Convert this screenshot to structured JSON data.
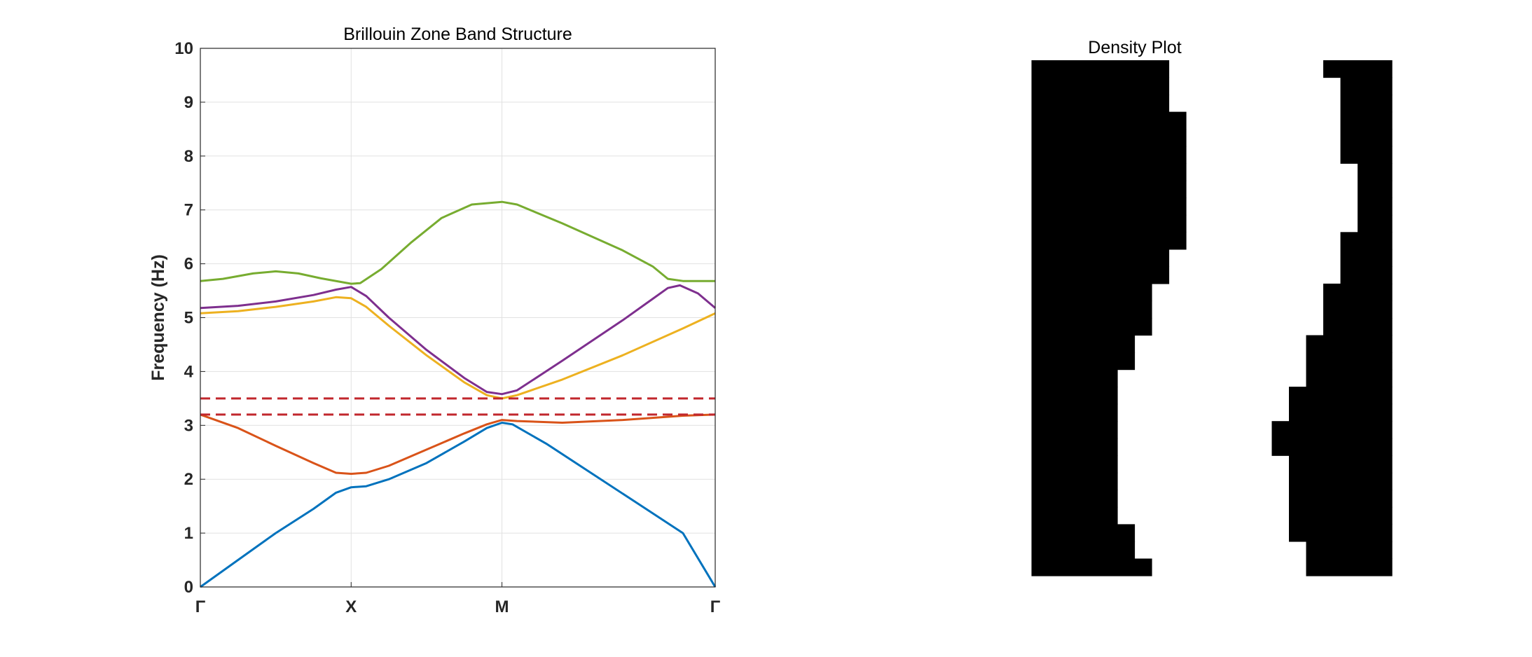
{
  "chart_data": [
    {
      "type": "line",
      "title": "Brillouin Zone Band Structure",
      "xlabel": "",
      "ylabel": "Frequency (Hz)",
      "ylim": [
        0,
        10
      ],
      "yticks": [
        0,
        1,
        2,
        3,
        4,
        5,
        6,
        7,
        8,
        9,
        10
      ],
      "xlim": [
        0,
        3.4142
      ],
      "xticks": [
        {
          "value": 0,
          "label": "Γ"
        },
        {
          "value": 1,
          "label": "X"
        },
        {
          "value": 2,
          "label": "M"
        },
        {
          "value": 3.4142,
          "label": "Γ"
        }
      ],
      "grid": true,
      "series": [
        {
          "color": "#0072BD",
          "points": [
            [
              0,
              0
            ],
            [
              0.25,
              0.5
            ],
            [
              0.5,
              1.0
            ],
            [
              0.75,
              1.45
            ],
            [
              0.9,
              1.75
            ],
            [
              1.0,
              1.85
            ],
            [
              1.1,
              1.87
            ],
            [
              1.25,
              2.0
            ],
            [
              1.5,
              2.3
            ],
            [
              1.75,
              2.7
            ],
            [
              1.9,
              2.95
            ],
            [
              2.0,
              3.05
            ],
            [
              2.07,
              3.02
            ],
            [
              2.3,
              2.65
            ],
            [
              2.6,
              2.1
            ],
            [
              2.9,
              1.55
            ],
            [
              3.2,
              1.0
            ],
            [
              3.4142,
              0
            ]
          ]
        },
        {
          "color": "#D95319",
          "points": [
            [
              0,
              3.2
            ],
            [
              0.25,
              2.95
            ],
            [
              0.5,
              2.62
            ],
            [
              0.75,
              2.3
            ],
            [
              0.9,
              2.12
            ],
            [
              1.0,
              2.1
            ],
            [
              1.1,
              2.12
            ],
            [
              1.25,
              2.25
            ],
            [
              1.5,
              2.55
            ],
            [
              1.75,
              2.85
            ],
            [
              1.9,
              3.02
            ],
            [
              2.0,
              3.1
            ],
            [
              2.1,
              3.08
            ],
            [
              2.4,
              3.05
            ],
            [
              2.8,
              3.1
            ],
            [
              3.2,
              3.18
            ],
            [
              3.4142,
              3.2
            ]
          ]
        },
        {
          "color": "#EDB120",
          "points": [
            [
              0,
              5.08
            ],
            [
              0.25,
              5.12
            ],
            [
              0.5,
              5.2
            ],
            [
              0.75,
              5.3
            ],
            [
              0.9,
              5.38
            ],
            [
              1.0,
              5.36
            ],
            [
              1.1,
              5.2
            ],
            [
              1.25,
              4.85
            ],
            [
              1.5,
              4.3
            ],
            [
              1.75,
              3.8
            ],
            [
              1.9,
              3.56
            ],
            [
              2.0,
              3.5
            ],
            [
              2.1,
              3.56
            ],
            [
              2.4,
              3.85
            ],
            [
              2.8,
              4.3
            ],
            [
              3.2,
              4.8
            ],
            [
              3.4142,
              5.08
            ]
          ]
        },
        {
          "color": "#7E2F8E",
          "points": [
            [
              0,
              5.18
            ],
            [
              0.25,
              5.22
            ],
            [
              0.5,
              5.3
            ],
            [
              0.75,
              5.42
            ],
            [
              0.9,
              5.52
            ],
            [
              1.0,
              5.57
            ],
            [
              1.1,
              5.4
            ],
            [
              1.25,
              5.0
            ],
            [
              1.5,
              4.4
            ],
            [
              1.75,
              3.88
            ],
            [
              1.9,
              3.62
            ],
            [
              2.0,
              3.58
            ],
            [
              2.1,
              3.65
            ],
            [
              2.4,
              4.2
            ],
            [
              2.8,
              4.95
            ],
            [
              3.0,
              5.35
            ],
            [
              3.1,
              5.55
            ],
            [
              3.18,
              5.6
            ],
            [
              3.3,
              5.45
            ],
            [
              3.4142,
              5.18
            ]
          ]
        },
        {
          "color": "#77AC30",
          "points": [
            [
              0,
              5.68
            ],
            [
              0.15,
              5.72
            ],
            [
              0.35,
              5.82
            ],
            [
              0.5,
              5.86
            ],
            [
              0.65,
              5.82
            ],
            [
              0.8,
              5.73
            ],
            [
              1.0,
              5.63
            ],
            [
              1.06,
              5.64
            ],
            [
              1.2,
              5.9
            ],
            [
              1.4,
              6.4
            ],
            [
              1.6,
              6.85
            ],
            [
              1.8,
              7.1
            ],
            [
              2.0,
              7.15
            ],
            [
              2.1,
              7.1
            ],
            [
              2.4,
              6.75
            ],
            [
              2.8,
              6.25
            ],
            [
              3.0,
              5.95
            ],
            [
              3.1,
              5.72
            ],
            [
              3.2,
              5.68
            ],
            [
              3.4142,
              5.68
            ]
          ]
        }
      ],
      "reference_lines": [
        {
          "y": 3.5,
          "style": "dashed",
          "color": "#C1272D"
        },
        {
          "y": 3.2,
          "style": "dashed",
          "color": "#C1272D"
        }
      ]
    },
    {
      "type": "heatmap",
      "title": "Density Plot",
      "colors": {
        "solid": "#000000",
        "void": "#ffffff"
      },
      "grid_size": [
        30,
        30
      ],
      "rows": [
        [
          [
            0,
            0
          ],
          [
            9,
            17
          ],
          [
            26,
            30
          ]
        ],
        [
          [
            0,
            0
          ],
          [
            9,
            17
          ],
          [
            27,
            30
          ]
        ],
        [
          [
            0,
            0
          ],
          [
            9,
            17
          ],
          [
            27,
            30
          ]
        ],
        [
          [
            0,
            0
          ],
          [
            9,
            18
          ],
          [
            27,
            30
          ]
        ],
        [
          [
            0,
            0
          ],
          [
            9,
            18
          ],
          [
            27,
            30
          ]
        ],
        [
          [
            0,
            0
          ],
          [
            9,
            18
          ],
          [
            27,
            30
          ]
        ],
        [
          [
            0,
            0
          ],
          [
            9,
            18
          ],
          [
            28,
            30
          ]
        ],
        [
          [
            0,
            0
          ],
          [
            9,
            18
          ],
          [
            28,
            30
          ]
        ],
        [
          [
            0,
            0
          ],
          [
            9,
            18
          ],
          [
            28,
            30
          ]
        ],
        [
          [
            0,
            0
          ],
          [
            9,
            18
          ],
          [
            28,
            30
          ]
        ],
        [
          [
            0,
            0
          ],
          [
            9,
            18
          ],
          [
            27,
            30
          ]
        ],
        [
          [
            0,
            0
          ],
          [
            9,
            17
          ],
          [
            27,
            30
          ]
        ],
        [
          [
            0,
            0
          ],
          [
            9,
            17
          ],
          [
            27,
            30
          ]
        ],
        [
          [
            0,
            0
          ],
          [
            9,
            16
          ],
          [
            26,
            30
          ]
        ],
        [
          [
            0,
            0
          ],
          [
            9,
            16
          ],
          [
            26,
            30
          ]
        ],
        [
          [
            9,
            16
          ],
          [
            26,
            30
          ]
        ],
        [
          [
            9,
            15
          ],
          [
            25,
            30
          ]
        ],
        [
          [
            9,
            15
          ],
          [
            25,
            30
          ]
        ],
        [
          [
            9,
            14
          ],
          [
            25,
            30
          ]
        ],
        [
          [
            0,
            0
          ],
          [
            9,
            14
          ],
          [
            24,
            30
          ]
        ],
        [
          [
            0,
            0
          ],
          [
            9,
            14
          ],
          [
            24,
            30
          ]
        ],
        [
          [
            0,
            0
          ],
          [
            9,
            14
          ],
          [
            23,
            30
          ]
        ],
        [
          [
            0,
            0
          ],
          [
            9,
            14
          ],
          [
            23,
            30
          ]
        ],
        [
          [
            0,
            0
          ],
          [
            9,
            14
          ],
          [
            24,
            30
          ]
        ],
        [
          [
            0,
            0
          ],
          [
            9,
            14
          ],
          [
            24,
            30
          ]
        ],
        [
          [
            0,
            0
          ],
          [
            9,
            14
          ],
          [
            24,
            30
          ]
        ],
        [
          [
            0,
            0
          ],
          [
            9,
            14
          ],
          [
            24,
            30
          ]
        ],
        [
          [
            0,
            0
          ],
          [
            9,
            15
          ],
          [
            24,
            30
          ]
        ],
        [
          [
            0,
            0
          ],
          [
            9,
            15
          ],
          [
            25,
            30
          ]
        ],
        [
          [
            0,
            0
          ],
          [
            9,
            16
          ],
          [
            25,
            30
          ]
        ]
      ]
    }
  ]
}
